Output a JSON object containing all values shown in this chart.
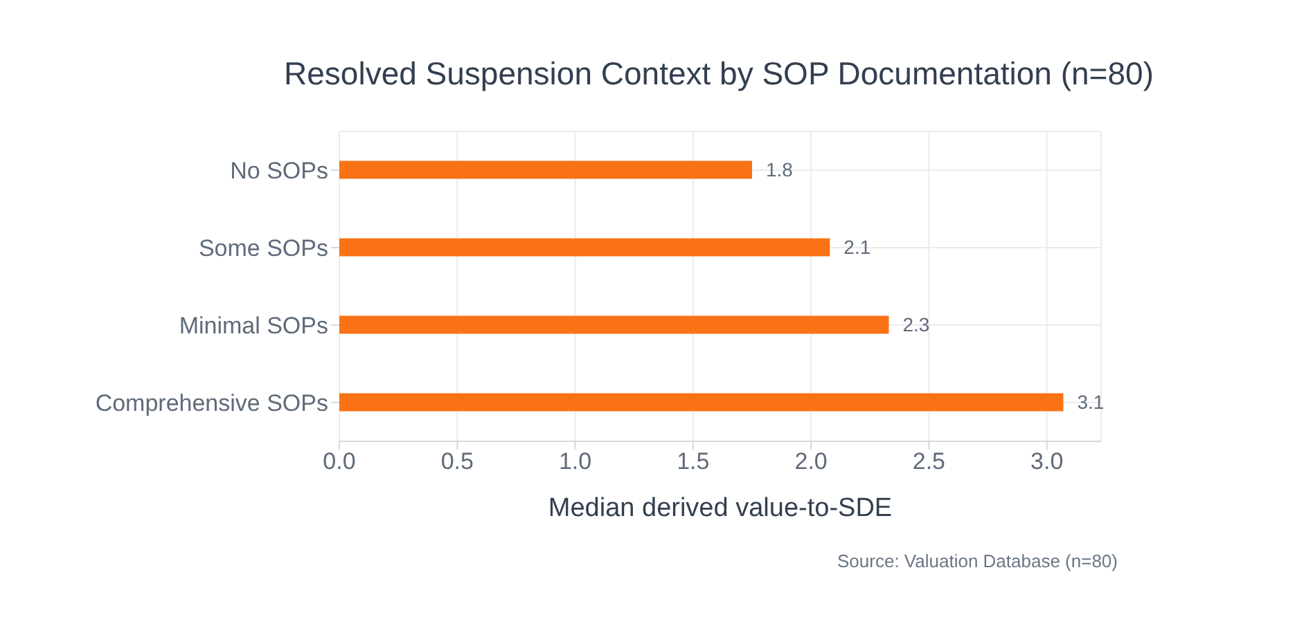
{
  "chart_data": {
    "type": "bar",
    "orientation": "horizontal",
    "title": "Resolved Suspension Context by SOP Documentation (n=80)",
    "categories": [
      "No SOPs",
      "Some SOPs",
      "Minimal SOPs",
      "Comprehensive SOPs"
    ],
    "values": [
      1.75,
      2.08,
      2.33,
      3.07
    ],
    "value_labels": [
      "1.8",
      "2.1",
      "2.3",
      "3.1"
    ],
    "color": "#f97316",
    "xlabel": "Median derived value-to-SDE",
    "xlim": [
      0,
      3.23
    ],
    "xticks": [
      {
        "value": 0,
        "label": "0.0"
      },
      {
        "value": 0.5,
        "label": "0.5"
      },
      {
        "value": 1,
        "label": "1.0"
      },
      {
        "value": 1.5,
        "label": "1.5"
      },
      {
        "value": 2,
        "label": "2.0"
      },
      {
        "value": 2.5,
        "label": "2.5"
      },
      {
        "value": 3,
        "label": "3.0"
      }
    ],
    "grid": true,
    "annotations": [
      "Source: Valuation Database (n=80)"
    ]
  }
}
